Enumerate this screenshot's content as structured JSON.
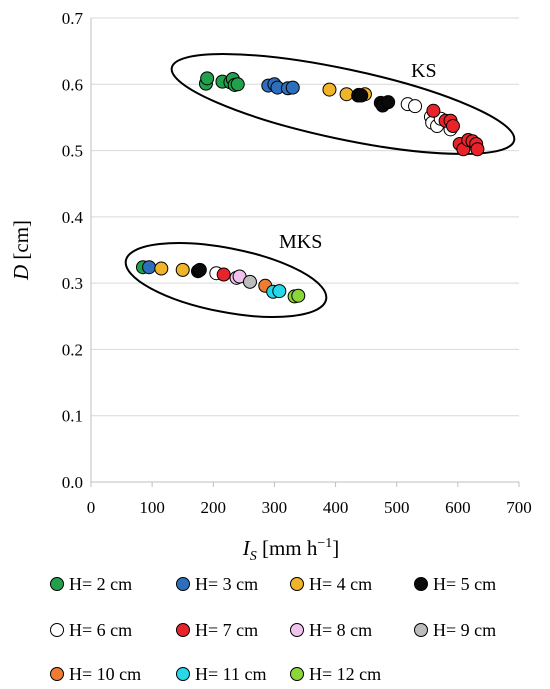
{
  "chart_data": {
    "type": "scatter",
    "title": "",
    "xlabel": {
      "main": "I",
      "sub": "S",
      "unit_pre": " [mm h",
      "unit_sup": "−1",
      "unit_post": "]"
    },
    "ylabel": {
      "main": "D",
      "unit": " [cm]"
    },
    "xlim": [
      0,
      700
    ],
    "ylim": [
      0.0,
      0.7
    ],
    "x_ticks": [
      "0",
      "100",
      "200",
      "300",
      "400",
      "500",
      "600",
      "700"
    ],
    "y_ticks": [
      "0.0",
      "0.1",
      "0.2",
      "0.3",
      "0.4",
      "0.5",
      "0.6",
      "0.7"
    ],
    "grid": "horizontal",
    "legend_position": "bottom",
    "groups": [
      {
        "label": "KS"
      },
      {
        "label": "MKS"
      }
    ],
    "series": [
      {
        "name": "H= 2 cm",
        "color": "#22a04b",
        "points": [
          [
            188,
            0.601
          ],
          [
            190,
            0.609
          ],
          [
            215,
            0.604
          ],
          [
            228,
            0.603
          ],
          [
            232,
            0.608
          ],
          [
            235,
            0.599
          ],
          [
            240,
            0.6
          ]
        ],
        "mks_points": [
          [
            85,
            0.324
          ]
        ]
      },
      {
        "name": "H= 3 cm",
        "color": "#2e6fbd",
        "points": [
          [
            290,
            0.598
          ],
          [
            300,
            0.6
          ],
          [
            305,
            0.595
          ],
          [
            322,
            0.594
          ],
          [
            330,
            0.595
          ]
        ],
        "mks_points": [
          [
            95,
            0.324
          ]
        ]
      },
      {
        "name": "H= 4 cm",
        "color": "#f0b428",
        "points": [
          [
            390,
            0.592
          ],
          [
            418,
            0.585
          ],
          [
            438,
            0.584
          ],
          [
            448,
            0.585
          ]
        ],
        "mks_points": [
          [
            115,
            0.322
          ],
          [
            150,
            0.32
          ]
        ]
      },
      {
        "name": "H= 5 cm",
        "color": "#0a0a0a",
        "points": [
          [
            437,
            0.583
          ],
          [
            442,
            0.583
          ],
          [
            474,
            0.572
          ],
          [
            477,
            0.568
          ],
          [
            486,
            0.573
          ]
        ],
        "mks_points": [
          [
            175,
            0.318
          ],
          [
            178,
            0.32
          ]
        ]
      },
      {
        "name": "H= 6 cm",
        "color": "#ffffff",
        "points": [
          [
            518,
            0.57
          ],
          [
            530,
            0.567
          ],
          [
            556,
            0.551
          ],
          [
            558,
            0.542
          ],
          [
            566,
            0.537
          ],
          [
            572,
            0.548
          ],
          [
            588,
            0.532
          ]
        ],
        "mks_points": [
          [
            205,
            0.315
          ]
        ]
      },
      {
        "name": "H= 7 cm",
        "color": "#e8242a",
        "points": [
          [
            560,
            0.56
          ],
          [
            580,
            0.545
          ],
          [
            588,
            0.545
          ],
          [
            592,
            0.537
          ],
          [
            603,
            0.51
          ],
          [
            609,
            0.502
          ],
          [
            617,
            0.516
          ],
          [
            624,
            0.514
          ],
          [
            630,
            0.51
          ],
          [
            632,
            0.502
          ]
        ],
        "mks_points": [
          [
            217,
            0.313
          ]
        ]
      },
      {
        "name": "H= 8 cm",
        "color": "#f2c2ee",
        "points": [],
        "mks_points": [
          [
            238,
            0.308
          ],
          [
            243,
            0.31
          ]
        ]
      },
      {
        "name": "H= 9 cm",
        "color": "#bcbcbc",
        "points": [],
        "mks_points": [
          [
            260,
            0.302
          ]
        ]
      },
      {
        "name": "H= 10 cm",
        "color": "#ee7d32",
        "points": [],
        "mks_points": [
          [
            285,
            0.296
          ]
        ]
      },
      {
        "name": "H= 11 cm",
        "color": "#27d8ea",
        "points": [],
        "mks_points": [
          [
            298,
            0.287
          ],
          [
            308,
            0.288
          ]
        ]
      },
      {
        "name": "H= 12 cm",
        "color": "#8bd63a",
        "points": [],
        "mks_points": [
          [
            333,
            0.28
          ],
          [
            339,
            0.281
          ]
        ]
      }
    ]
  }
}
